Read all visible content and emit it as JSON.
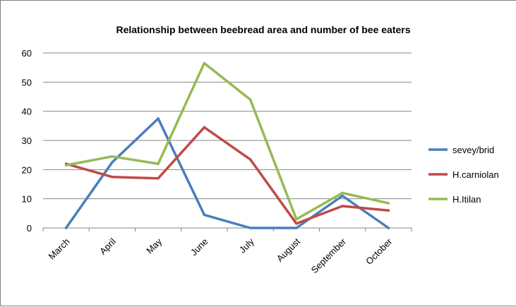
{
  "chart_data": {
    "type": "line",
    "title": "Relationship between  beebread area and number of bee eaters",
    "categories": [
      "March",
      "April",
      "May",
      "June",
      "July",
      "August",
      "September",
      "October"
    ],
    "ylim": [
      0,
      60
    ],
    "yticks": [
      0,
      10,
      20,
      30,
      40,
      50,
      60
    ],
    "grid": true,
    "legend_position": "right",
    "series": [
      {
        "name": "sevey/brid",
        "color": "#4a7ebb",
        "values": [
          0,
          22.5,
          37.5,
          4.5,
          0,
          0,
          11,
          0
        ]
      },
      {
        "name": "H.carniolan",
        "color": "#be4b48",
        "values": [
          22,
          17.5,
          17,
          34.5,
          23.5,
          1.5,
          7.5,
          6
        ]
      },
      {
        "name": "H.Itilan",
        "color": "#98b954",
        "values": [
          21.5,
          24.5,
          22,
          56.5,
          44,
          3,
          12,
          8.5
        ]
      }
    ]
  }
}
